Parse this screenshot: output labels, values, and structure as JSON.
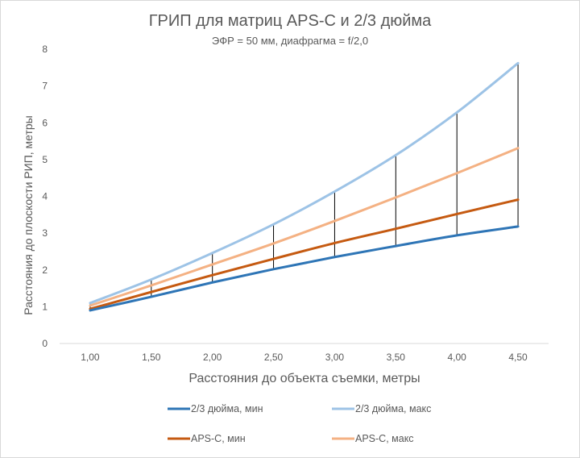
{
  "chart_data": {
    "type": "line",
    "title": "ГРИП для матриц APS-C и 2/3 дюйма",
    "subtitle": "ЭФР = 50 мм, диафрагма = f/2,0",
    "xlabel": "Расстояния до объекта съемки, метры",
    "ylabel": "Расстояния до плоскости РИП, метры",
    "categories": [
      "1,00",
      "1,50",
      "2,00",
      "2,50",
      "3,00",
      "3,50",
      "4,00",
      "4,50"
    ],
    "x": [
      1.0,
      1.5,
      2.0,
      2.5,
      3.0,
      3.5,
      4.0,
      4.5
    ],
    "ylim": [
      0,
      8
    ],
    "yticks": [
      "0",
      "1",
      "2",
      "3",
      "4",
      "5",
      "6",
      "7",
      "8"
    ],
    "grid": false,
    "legend_position": "bottom",
    "series": [
      {
        "name": "2/3 дюйма, мин",
        "color": "#2e75b6",
        "values": [
          0.9,
          1.27,
          1.66,
          2.02,
          2.35,
          2.65,
          2.94,
          3.18
        ]
      },
      {
        "name": "2/3 дюйма, макс",
        "color": "#9dc3e6",
        "values": [
          1.1,
          1.74,
          2.46,
          3.24,
          4.13,
          5.12,
          6.28,
          7.62
        ]
      },
      {
        "name": "APS-C, мин",
        "color": "#c55a11",
        "values": [
          0.94,
          1.4,
          1.86,
          2.3,
          2.73,
          3.12,
          3.52,
          3.91
        ]
      },
      {
        "name": "APS-C, макс",
        "color": "#f4b183",
        "values": [
          1.03,
          1.58,
          2.15,
          2.72,
          3.33,
          3.97,
          4.63,
          5.31
        ]
      }
    ]
  }
}
